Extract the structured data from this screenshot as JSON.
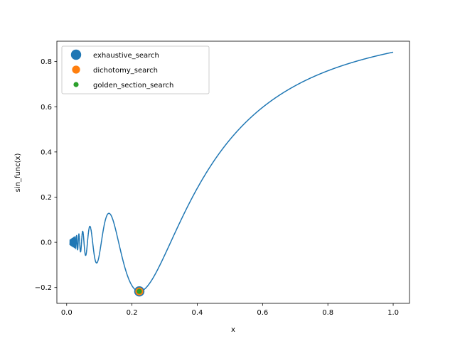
{
  "chart_data": {
    "type": "line",
    "title": "",
    "xlabel": "x",
    "ylabel": "sin_func(x)",
    "xlim": [
      -0.03,
      1.05
    ],
    "ylim": [
      -0.27,
      0.89
    ],
    "x_ticks": [
      "0.0",
      "0.2",
      "0.4",
      "0.6",
      "0.8",
      "1.0"
    ],
    "y_ticks": [
      "−0.2",
      "0.0",
      "0.2",
      "0.4",
      "0.6",
      "0.8"
    ],
    "x_tick_values": [
      0.0,
      0.2,
      0.4,
      0.6,
      0.8,
      1.0
    ],
    "y_tick_values": [
      -0.2,
      0.0,
      0.2,
      0.4,
      0.6,
      0.8
    ],
    "grid": false,
    "legend_position": "top-left",
    "function": "x * sin(1/x)",
    "function_domain": [
      0.01,
      1.0
    ],
    "line_color": "#1f77b4",
    "series": [
      {
        "name": "exhaustive_search",
        "type": "scatter",
        "color": "#1f77b4",
        "x": [
          0.2225
        ],
        "y": [
          -0.2172
        ]
      },
      {
        "name": "dichotomy_search",
        "type": "scatter",
        "color": "#ff7f0e",
        "x": [
          0.2225
        ],
        "y": [
          -0.2172
        ]
      },
      {
        "name": "golden_section_search",
        "type": "scatter",
        "color": "#2ca02c",
        "x": [
          0.2225
        ],
        "y": [
          -0.2172
        ]
      }
    ]
  }
}
